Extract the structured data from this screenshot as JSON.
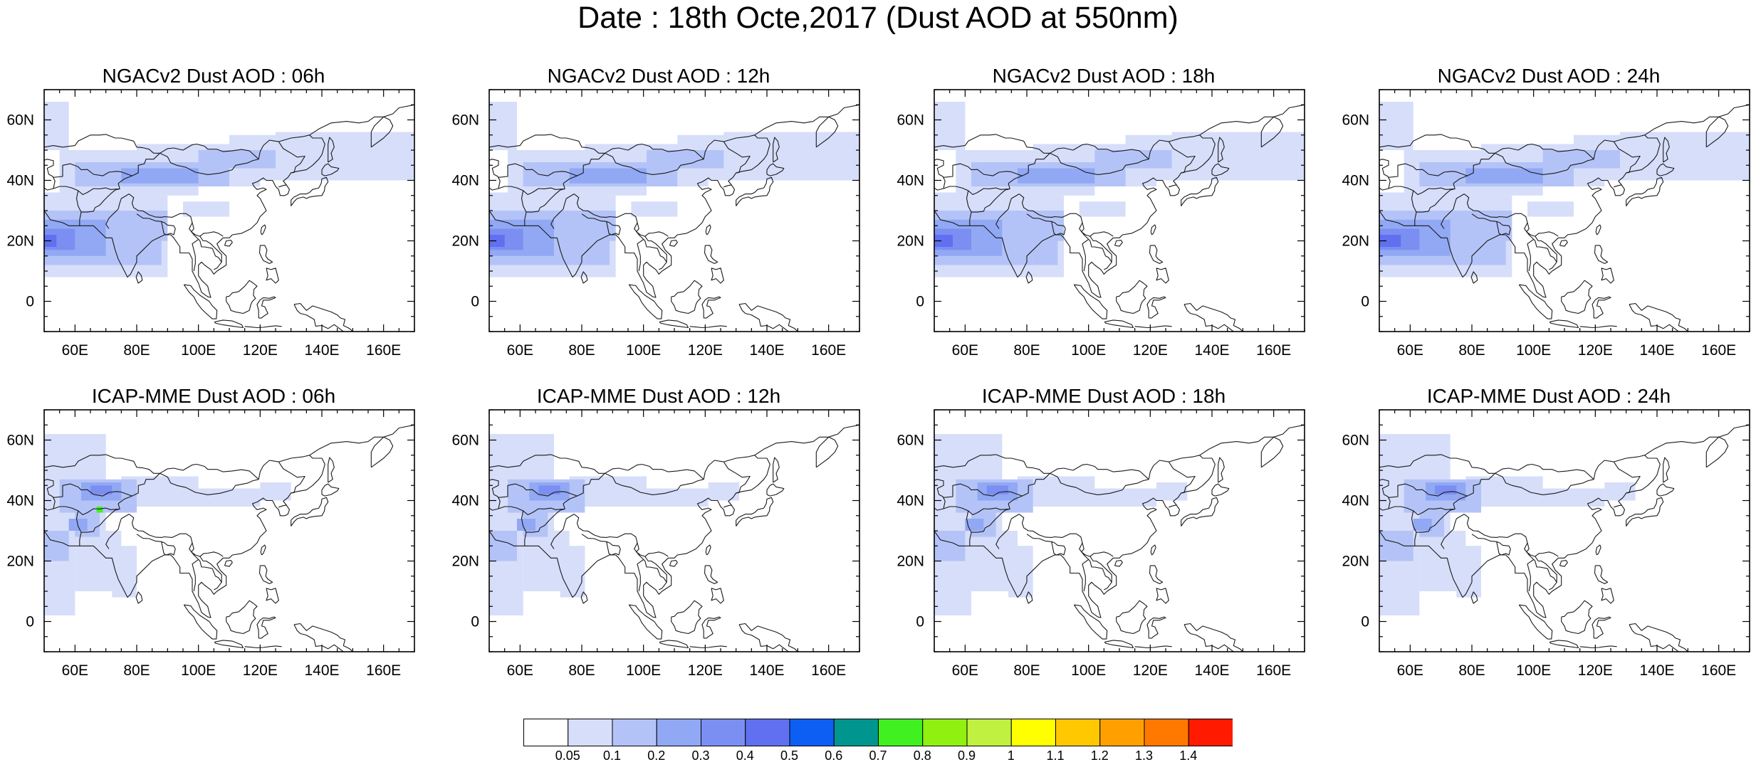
{
  "title": "Date : 18th Octe,2017 (Dust AOD at 550nm)",
  "axes": {
    "lat_ticks": [
      "60N",
      "40N",
      "20N",
      "0"
    ],
    "lon_ticks": [
      "60E",
      "80E",
      "100E",
      "120E",
      "140E",
      "160E"
    ]
  },
  "panels": [
    {
      "id": "ngac-06",
      "title": "NGACv2 Dust AOD : 06h",
      "model": "NGACv2",
      "hour": "06h"
    },
    {
      "id": "ngac-12",
      "title": "NGACv2 Dust AOD : 12h",
      "model": "NGACv2",
      "hour": "12h"
    },
    {
      "id": "ngac-18",
      "title": "NGACv2 Dust AOD : 18h",
      "model": "NGACv2",
      "hour": "18h"
    },
    {
      "id": "ngac-24",
      "title": "NGACv2 Dust AOD : 24h",
      "model": "NGACv2",
      "hour": "24h"
    },
    {
      "id": "icap-06",
      "title": "ICAP-MME Dust AOD : 06h",
      "model": "ICAP-MME",
      "hour": "06h"
    },
    {
      "id": "icap-12",
      "title": "ICAP-MME Dust AOD : 12h",
      "model": "ICAP-MME",
      "hour": "12h"
    },
    {
      "id": "icap-18",
      "title": "ICAP-MME Dust AOD : 18h",
      "model": "ICAP-MME",
      "hour": "18h"
    },
    {
      "id": "icap-24",
      "title": "ICAP-MME Dust AOD : 24h",
      "model": "ICAP-MME",
      "hour": "24h"
    }
  ],
  "colorbar": {
    "labels": [
      "0.05",
      "0.1",
      "0.2",
      "0.3",
      "0.4",
      "0.5",
      "0.6",
      "0.7",
      "0.8",
      "0.9",
      "1",
      "1.1",
      "1.2",
      "1.3",
      "1.4"
    ],
    "colors": [
      "#ffffff",
      "#d6defa",
      "#b4c3f7",
      "#91a8f4",
      "#7b8ff2",
      "#6070f0",
      "#0c5ff2",
      "#00968f",
      "#40f020",
      "#90f010",
      "#c0f040",
      "#ffff00",
      "#ffc800",
      "#ffa000",
      "#ff7800",
      "#ff1a00"
    ]
  }
}
